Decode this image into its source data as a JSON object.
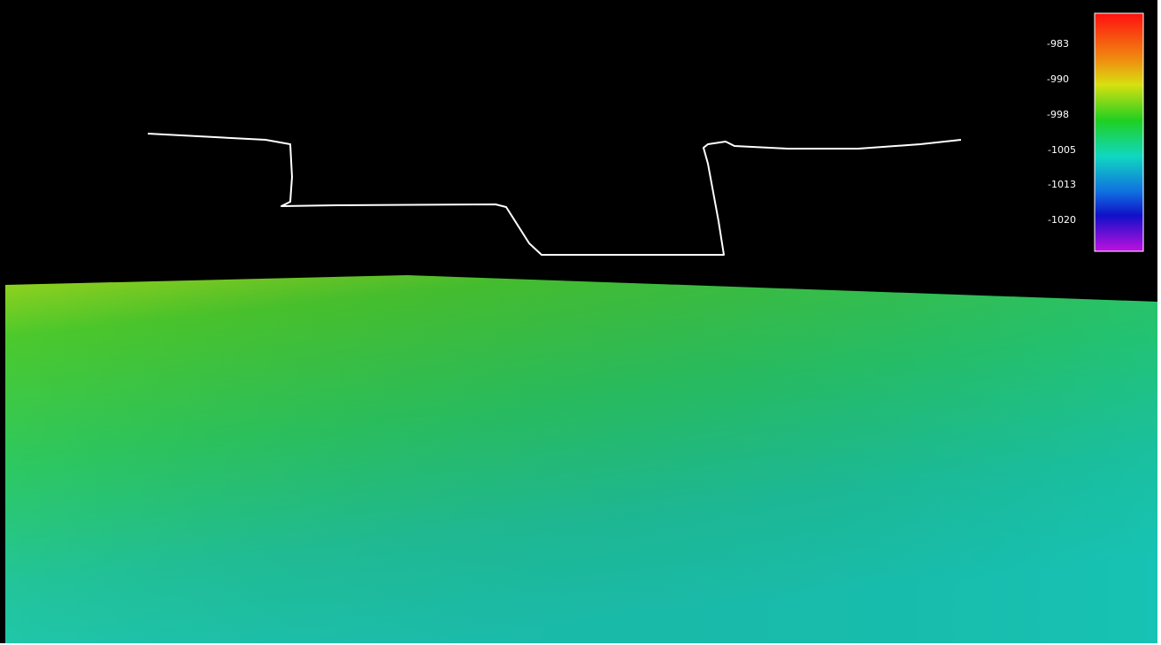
{
  "colorbar": {
    "labels": [
      "-983",
      "-990",
      "-998",
      "-1005",
      "-1013",
      "-1020"
    ]
  }
}
